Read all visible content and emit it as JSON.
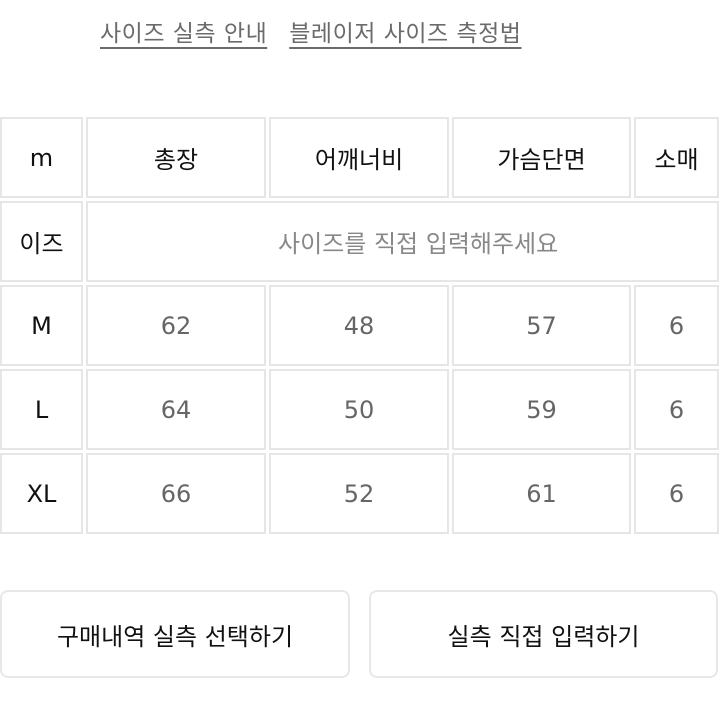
{
  "links": {
    "size_guide": "사이즈 실측 안내",
    "measure_method": "블레이저 사이즈 측정법"
  },
  "table": {
    "header": [
      "m",
      "총장",
      "어깨너비",
      "가슴단면",
      "소매"
    ],
    "my_size_label": "이즈",
    "my_size_placeholder": "사이즈를 직접 입력해주세요",
    "rows": [
      {
        "size": "M",
        "values": [
          "62",
          "48",
          "57",
          "6"
        ]
      },
      {
        "size": "L",
        "values": [
          "64",
          "50",
          "59",
          "6"
        ]
      },
      {
        "size": "XL",
        "values": [
          "66",
          "52",
          "61",
          "6"
        ]
      }
    ]
  },
  "buttons": {
    "select_from_purchases": "구매내역 실측 선택하기",
    "enter_manually": "실측 직접 입력하기"
  },
  "colors": {
    "link": "#6b6b6b",
    "border": "#e6e6e6",
    "value_text": "#666666",
    "header_text": "#111111"
  }
}
